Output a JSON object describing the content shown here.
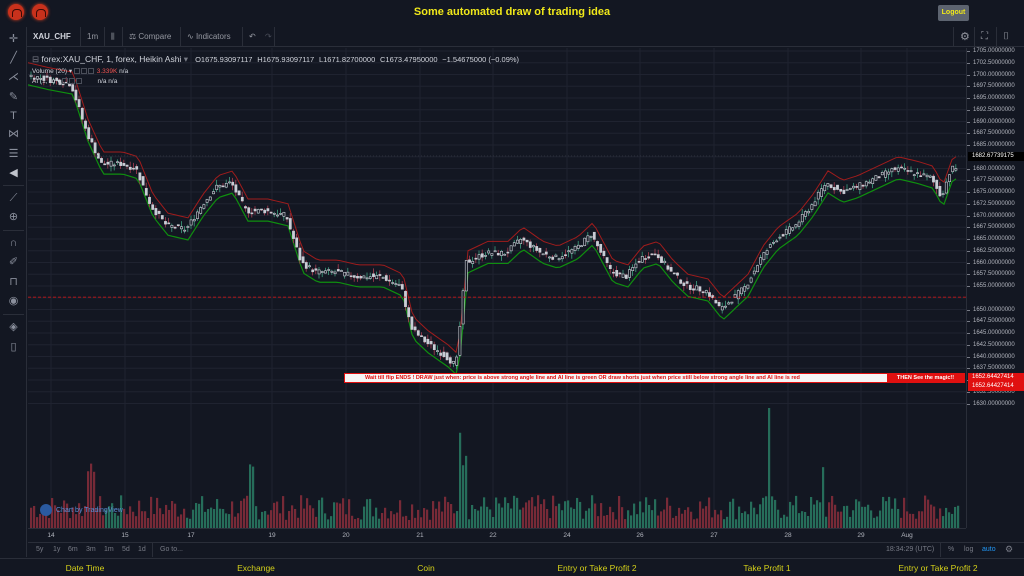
{
  "header": {
    "title": "Some automated draw of trading idea",
    "logout_label": "Logout",
    "logos": [
      "logo-icon",
      "logo-icon"
    ]
  },
  "toolbar": {
    "symbol": "XAU_CHF",
    "interval": "1m",
    "chart_type_icon": "candles-icon",
    "compare_label": "Compare",
    "indicators_label": "Indicators",
    "undo_icon": "undo-icon",
    "redo_icon": "redo-icon",
    "right_icons": [
      "gear-icon",
      "fullscreen-icon",
      "camera-icon"
    ]
  },
  "left_toolbar": {
    "icons": [
      "crosshair-icon",
      "trend-line-icon",
      "pitchfork-icon",
      "brush-icon",
      "text-icon",
      "pattern-icon",
      "prediction-icon",
      "arrow-left-icon",
      "ruler-icon",
      "zoom-in-icon",
      "magnet-icon",
      "lock-pencil-icon",
      "unlock-icon",
      "eye-icon",
      "layers-icon",
      "trash-icon"
    ]
  },
  "legend": {
    "main": "forex:XAU_CHF, 1, forex, Heikin Ashi",
    "open": "O1675.93097117",
    "high": "H1675.93097117",
    "low": "L1671.82700000",
    "close": "C1673.47950000",
    "change": "−1.54675000 (−0.09%)",
    "volume_label": "Volume (20)",
    "volume_value": "3.339K",
    "volume_na": "n/a",
    "ai_label": "AI (1, 1)",
    "ai_value": "n/a  n/a"
  },
  "yaxis": {
    "ticks": [
      "1705.00000000",
      "1702.50000000",
      "1700.00000000",
      "1697.50000000",
      "1695.00000000",
      "1692.50000000",
      "1690.00000000",
      "1687.50000000",
      "1685.00000000",
      "1680.00000000",
      "1677.50000000",
      "1675.00000000",
      "1672.50000000",
      "1670.00000000",
      "1667.50000000",
      "1665.00000000",
      "1662.50000000",
      "1660.00000000",
      "1657.50000000",
      "1655.00000000",
      "1650.00000000",
      "1647.50000000",
      "1645.00000000",
      "1642.50000000",
      "1640.00000000",
      "1637.50000000",
      "1635.00000000",
      "1632.50000000",
      "1630.00000000"
    ],
    "current_price": "1682.67739175",
    "line_price_1": "1652.64427414",
    "line_price_2": "1652.64427414"
  },
  "xaxis": {
    "ticks": [
      "14",
      "15",
      "17",
      "19",
      "20",
      "21",
      "22",
      "24",
      "26",
      "27",
      "28",
      "29",
      "Aug"
    ]
  },
  "bottom_bar": {
    "ranges": [
      "5y",
      "1y",
      "6m",
      "3m",
      "1m",
      "5d",
      "1d"
    ],
    "goto_label": "Go to...",
    "time": "18:34:29 (UTC)",
    "percent_label": "%",
    "log_label": "log",
    "auto_label": "auto"
  },
  "banner": {
    "text": "Wait till flip ENDS  !   DRAW just when:  price is above strong angle line and AI line is green          OR          draw shorts just when price still below strong angle line and AI line is red",
    "highlight": "THEN See the magic!!"
  },
  "watermark": "Chart by TradingView",
  "footer": {
    "items": [
      "Date Time",
      "Exchange",
      "Coin",
      "Entry or Take Profit 2",
      "Take Profit 1",
      "Entry or Take Profit 2"
    ]
  },
  "colors": {
    "background": "#131722",
    "title": "#f0e81a",
    "footer_text": "#d4d01a",
    "up_volume": "#26a69a",
    "down_volume": "#ef5350",
    "ai_green": "#0f9d0f",
    "ai_red": "#b01c1c",
    "banner_red": "#e01010"
  }
}
